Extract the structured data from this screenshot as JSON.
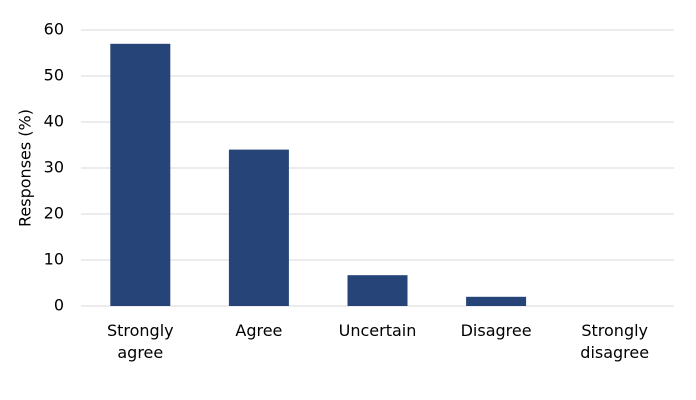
{
  "chart_data": {
    "type": "bar",
    "y_label": "Responses (%)",
    "categories": [
      "Strongly agree",
      "Agree",
      "Uncertain",
      "Disagree",
      "Strongly disagree"
    ],
    "values": [
      57,
      34,
      6.7,
      2,
      0
    ],
    "color": "#264478",
    "ylim": [
      0,
      60
    ],
    "yticks": [
      0,
      10,
      20,
      30,
      40,
      50,
      60
    ],
    "grid": true
  }
}
